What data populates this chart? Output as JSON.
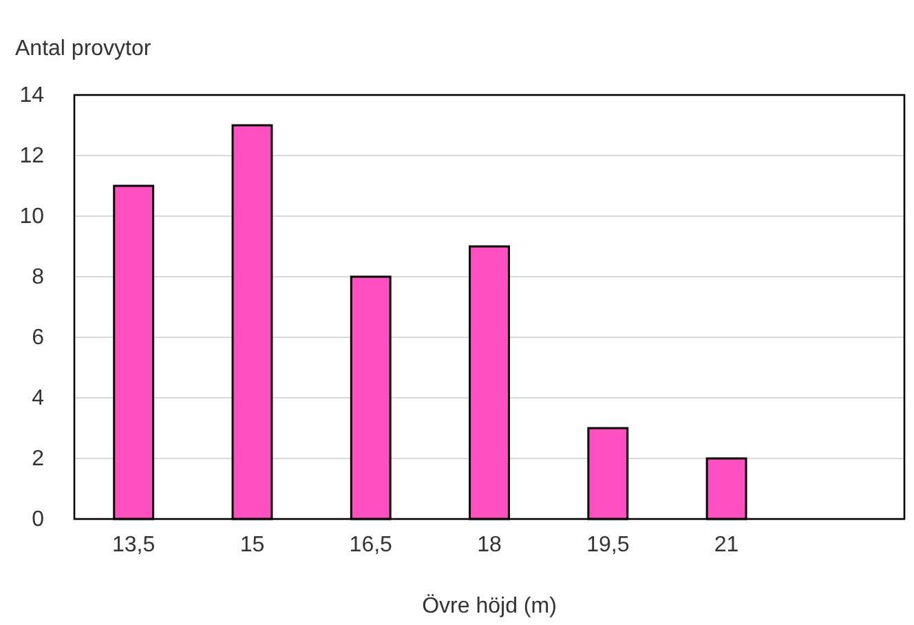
{
  "chart_data": {
    "type": "bar",
    "ylabel": "Antal provytor",
    "xlabel": "Övre höjd (m)",
    "categories": [
      "13,5",
      "15",
      "16,5",
      "18",
      "19,5",
      "21",
      null
    ],
    "values": [
      11,
      13,
      8,
      9,
      3,
      2,
      null
    ],
    "color": "#ff4fc0",
    "ylim": [
      0,
      14
    ],
    "yticks": [
      0,
      2,
      4,
      6,
      8,
      10,
      12,
      14
    ],
    "grid": "y"
  }
}
